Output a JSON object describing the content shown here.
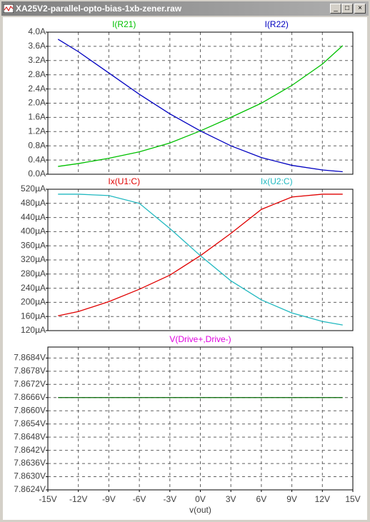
{
  "window_title": "XA25V2-parallel-opto-bias-1xb-zener.raw",
  "chart_data": [
    {
      "type": "line",
      "x": [
        -14,
        -12,
        -9,
        -6,
        -3,
        0,
        3,
        6,
        9,
        12,
        14
      ],
      "series": [
        {
          "name": "I(R21)",
          "color": "#00c000",
          "values": [
            0.22,
            0.3,
            0.45,
            0.63,
            0.88,
            1.22,
            1.6,
            2.0,
            2.5,
            3.1,
            3.62
          ]
        },
        {
          "name": "I(R22)",
          "color": "#0000c0",
          "values": [
            3.8,
            3.45,
            2.85,
            2.25,
            1.7,
            1.22,
            0.8,
            0.47,
            0.25,
            0.12,
            0.07
          ]
        }
      ],
      "xlim": [
        -15,
        15
      ],
      "ylim": [
        0,
        4
      ],
      "yticks": [
        {
          "value": 0,
          "label": "0.0A"
        },
        {
          "value": 0.4,
          "label": "0.4A"
        },
        {
          "value": 0.8,
          "label": "0.8A"
        },
        {
          "value": 1.2,
          "label": "1.2A"
        },
        {
          "value": 1.6,
          "label": "1.6A"
        },
        {
          "value": 2.0,
          "label": "2.0A"
        },
        {
          "value": 2.4,
          "label": "2.4A"
        },
        {
          "value": 2.8,
          "label": "2.8A"
        },
        {
          "value": 3.2,
          "label": "3.2A"
        },
        {
          "value": 3.6,
          "label": "3.6A"
        },
        {
          "value": 4.0,
          "label": "4.0A"
        }
      ],
      "grid": true
    },
    {
      "type": "line",
      "x": [
        -14,
        -12,
        -9,
        -6,
        -3,
        0,
        3,
        6,
        9,
        12,
        14
      ],
      "series": [
        {
          "name": "Ix(U1:C)",
          "color": "#e00000",
          "values": [
            162,
            174,
            202,
            237,
            277,
            332,
            395,
            463,
            498,
            506,
            506
          ]
        },
        {
          "name": "Ix(U2:C)",
          "color": "#20b8c0",
          "values": [
            506,
            506,
            502,
            480,
            409,
            332,
            261,
            207,
            170,
            146,
            136
          ]
        }
      ],
      "xlim": [
        -15,
        15
      ],
      "ylim": [
        120,
        520
      ],
      "yticks": [
        {
          "value": 120,
          "label": "120µA"
        },
        {
          "value": 160,
          "label": "160µA"
        },
        {
          "value": 200,
          "label": "200µA"
        },
        {
          "value": 240,
          "label": "240µA"
        },
        {
          "value": 280,
          "label": "280µA"
        },
        {
          "value": 320,
          "label": "320µA"
        },
        {
          "value": 360,
          "label": "360µA"
        },
        {
          "value": 400,
          "label": "400µA"
        },
        {
          "value": 440,
          "label": "440µA"
        },
        {
          "value": 480,
          "label": "480µA"
        },
        {
          "value": 520,
          "label": "520µA"
        }
      ],
      "grid": true
    },
    {
      "type": "line",
      "x": [
        -14,
        -12,
        -9,
        -6,
        -3,
        0,
        3,
        6,
        9,
        12,
        14
      ],
      "series": [
        {
          "name": "V(Drive+,Drive-)",
          "color": "#006400",
          "label_color": "#e000e0",
          "values": [
            7.8666,
            7.8666,
            7.8666,
            7.8666,
            7.8666,
            7.8666,
            7.8666,
            7.8666,
            7.8666,
            7.8666,
            7.8666
          ]
        }
      ],
      "xlim": [
        -15,
        15
      ],
      "ylim": [
        7.8624,
        7.8689
      ],
      "yticks": [
        {
          "value": 7.8624,
          "label": "7.8624V"
        },
        {
          "value": 7.863,
          "label": "7.8630V"
        },
        {
          "value": 7.8636,
          "label": "7.8636V"
        },
        {
          "value": 7.8642,
          "label": "7.8642V"
        },
        {
          "value": 7.8648,
          "label": "7.8648V"
        },
        {
          "value": 7.8654,
          "label": "7.8654V"
        },
        {
          "value": 7.866,
          "label": "7.8660V"
        },
        {
          "value": 7.8666,
          "label": "7.8666V"
        },
        {
          "value": 7.8672,
          "label": "7.8672V"
        },
        {
          "value": 7.8678,
          "label": "7.8678V"
        },
        {
          "value": 7.8684,
          "label": "7.8684V"
        }
      ],
      "xticks": [
        {
          "value": -15,
          "label": "-15V"
        },
        {
          "value": -12,
          "label": "-12V"
        },
        {
          "value": -9,
          "label": "-9V"
        },
        {
          "value": -6,
          "label": "-6V"
        },
        {
          "value": -3,
          "label": "-3V"
        },
        {
          "value": 0,
          "label": "0V"
        },
        {
          "value": 3,
          "label": "3V"
        },
        {
          "value": 6,
          "label": "6V"
        },
        {
          "value": 9,
          "label": "9V"
        },
        {
          "value": 12,
          "label": "12V"
        },
        {
          "value": 15,
          "label": "15V"
        }
      ],
      "xlabel": "v(out)",
      "grid": true
    }
  ]
}
